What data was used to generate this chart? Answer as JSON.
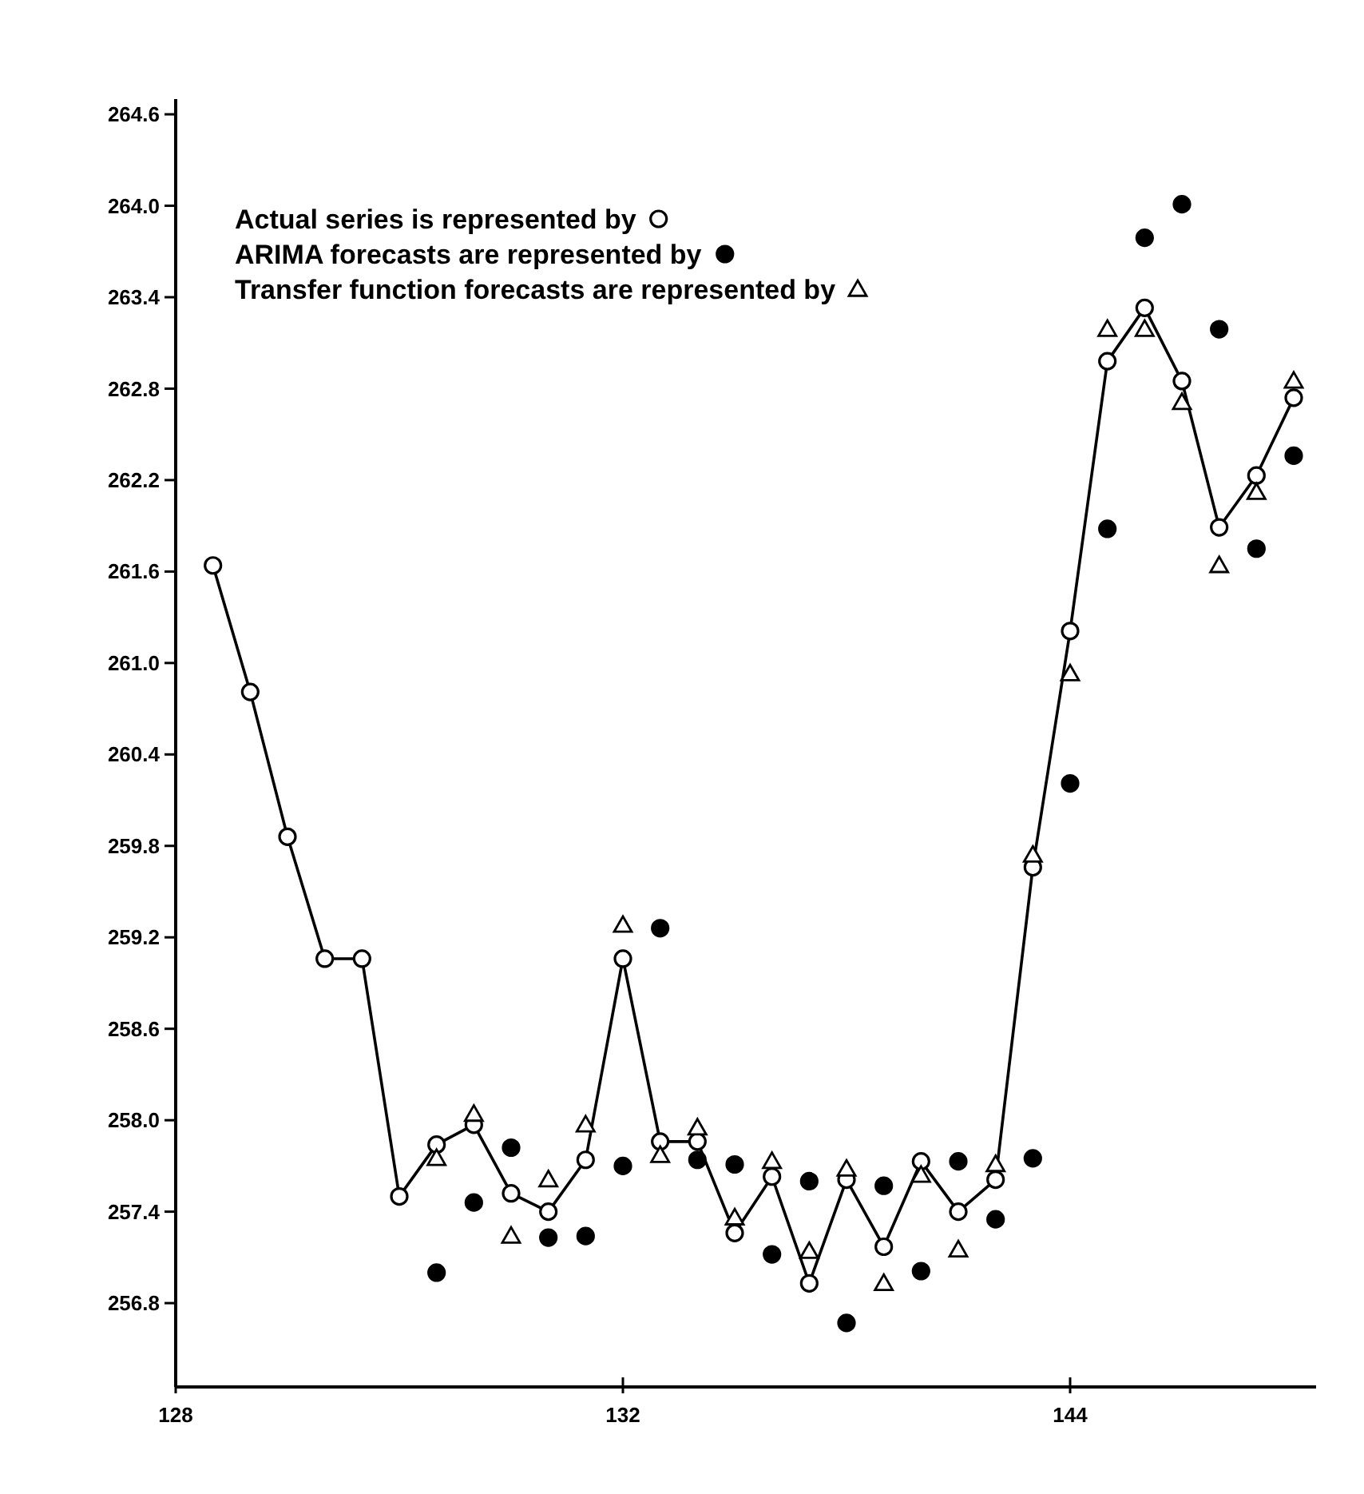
{
  "chart_data": {
    "type": "line",
    "categories": [
      "128",
      null,
      null,
      null,
      null,
      null,
      null,
      null,
      null,
      null,
      null,
      null,
      "132",
      null,
      null,
      null,
      null,
      null,
      null,
      null,
      null,
      null,
      null,
      null,
      "144",
      null,
      null,
      null,
      null,
      null,
      null
    ],
    "ylim": [
      256.25,
      264.7
    ],
    "yticks": [
      {
        "value": 264.6,
        "label": "264.6"
      },
      {
        "value": 264.0,
        "label": "264.0"
      },
      {
        "value": 263.4,
        "label": "263.4"
      },
      {
        "value": 262.8,
        "label": "262.8"
      },
      {
        "value": 262.2,
        "label": "262.2"
      },
      {
        "value": 261.6,
        "label": "261.6"
      },
      {
        "value": 261.0,
        "label": "261.0"
      },
      {
        "value": 260.4,
        "label": "260.4"
      },
      {
        "value": 259.8,
        "label": "259.8"
      },
      {
        "value": 259.2,
        "label": "259.2"
      },
      {
        "value": 258.6,
        "label": "258.6"
      },
      {
        "value": 258.0,
        "label": "258.0"
      },
      {
        "value": 257.4,
        "label": "257.4"
      },
      {
        "value": 256.8,
        "label": "256.8"
      }
    ],
    "grid": false,
    "legend": "top left",
    "series": [
      {
        "name": "Actual series is represented by",
        "marker": "circle",
        "color": "#000000",
        "values": [
          null,
          261.64,
          260.81,
          259.86,
          259.06,
          259.06,
          257.5,
          257.84,
          257.97,
          257.52,
          257.4,
          257.74,
          259.06,
          257.86,
          257.86,
          257.26,
          257.63,
          256.93,
          257.61,
          257.17,
          257.73,
          257.4,
          257.61,
          259.66,
          261.21,
          262.98,
          263.33,
          262.85,
          261.89,
          262.23,
          262.74
        ]
      },
      {
        "name": "ARIMA forecasts are represented by",
        "type": "scatter",
        "marker": "circle",
        "color": "#000000",
        "values": [
          null,
          null,
          null,
          null,
          null,
          null,
          null,
          257.0,
          257.46,
          257.82,
          257.23,
          257.24,
          257.7,
          259.26,
          257.74,
          257.71,
          257.12,
          257.6,
          256.67,
          257.57,
          257.01,
          257.73,
          257.35,
          257.75,
          260.21,
          261.88,
          263.79,
          264.01,
          263.19,
          261.75,
          262.36
        ]
      },
      {
        "name": "Transfer function forecasts are represented by",
        "type": "scatter",
        "marker": "triangle",
        "color": "#000000",
        "values": [
          null,
          null,
          null,
          null,
          null,
          null,
          null,
          257.75,
          258.04,
          257.24,
          257.61,
          257.97,
          259.28,
          257.77,
          257.95,
          257.36,
          257.73,
          257.14,
          257.68,
          256.93,
          257.64,
          257.15,
          257.71,
          259.74,
          260.93,
          263.19,
          263.19,
          262.71,
          261.64,
          262.12,
          262.85
        ]
      }
    ]
  }
}
